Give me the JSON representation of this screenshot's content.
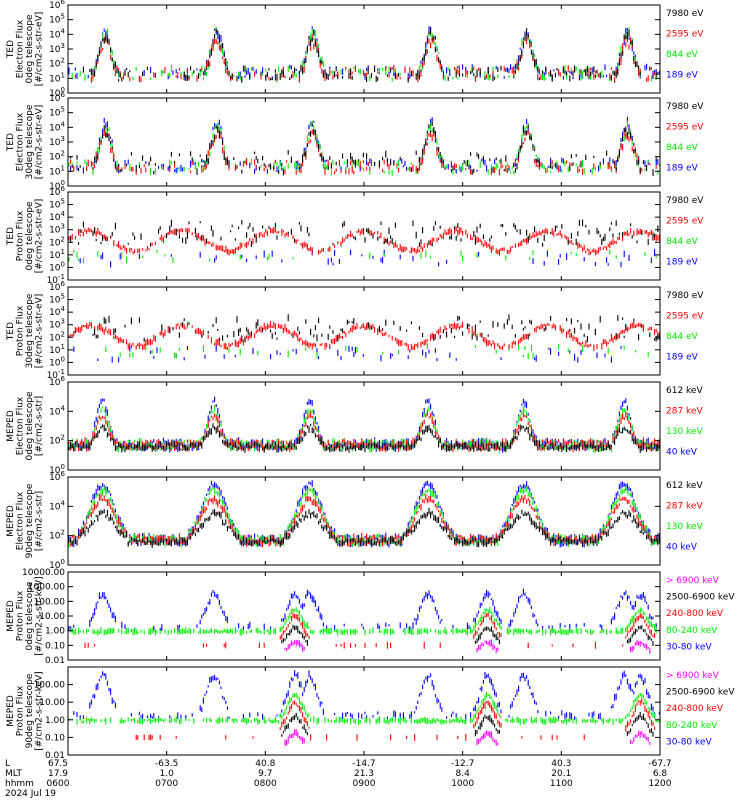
{
  "chart_data": {
    "type": "scatter",
    "date_label": "2024 Jul 19",
    "x_axis_rows": [
      {
        "name": "L",
        "ticks": [
          "67.5",
          "-63.5",
          "40.8",
          "-14.7",
          "-12.7",
          "40.3",
          "-67.7"
        ]
      },
      {
        "name": "MLT",
        "ticks": [
          "17.9",
          "1.0",
          "9.7",
          "21.3",
          "8.4",
          "20.1",
          "6.8"
        ]
      },
      {
        "name": "hhmm",
        "ticks": [
          "0600",
          "0700",
          "0800",
          "0900",
          "1000",
          "1100",
          "1200"
        ]
      }
    ],
    "x_ticks_hours": [
      6,
      7,
      8,
      9,
      10,
      11,
      12
    ],
    "x_range_hours": [
      6,
      12
    ],
    "series_colors": [
      "#0000ff",
      "#00ee00",
      "#ff0000",
      "#000000",
      "#ff00ff"
    ],
    "panels": [
      {
        "ylabel_lines": [
          "TED",
          "Electron Flux",
          "0deg telescope",
          "[#/cm2-s-str-eV]"
        ],
        "yscale": "log",
        "ylim": [
          1,
          1000000
        ],
        "yticks": [
          "10^0",
          "10^1",
          "10^2",
          "10^3",
          "10^4",
          "10^5",
          "10^6"
        ],
        "legend": [
          {
            "label": "7980 eV",
            "color": "#000000"
          },
          {
            "label": "2595 eV",
            "color": "#ff0000"
          },
          {
            "label": "844 eV",
            "color": "#00ee00"
          },
          {
            "label": "189 eV",
            "color": "#0000ff"
          }
        ],
        "kind": "ted_e0"
      },
      {
        "ylabel_lines": [
          "TED",
          "Electron Flux",
          "30deg telescope",
          "[#/cm2-s-str-eV]"
        ],
        "yscale": "log",
        "ylim": [
          1,
          1000000
        ],
        "yticks": [
          "10^0",
          "10^1",
          "10^2",
          "10^3",
          "10^4",
          "10^5",
          "10^6"
        ],
        "legend": [
          {
            "label": "7980 eV",
            "color": "#000000"
          },
          {
            "label": "2595 eV",
            "color": "#ff0000"
          },
          {
            "label": "844 eV",
            "color": "#00ee00"
          },
          {
            "label": "189 eV",
            "color": "#0000ff"
          }
        ],
        "kind": "ted_e30"
      },
      {
        "ylabel_lines": [
          "TED",
          "Proton Flux",
          "0deg telescope",
          "[#/cm2-s-str-eV]"
        ],
        "yscale": "log",
        "ylim": [
          0.1,
          1000000
        ],
        "yticks": [
          "10^-1",
          "10^0",
          "10^1",
          "10^2",
          "10^3",
          "10^4",
          "10^5",
          "10^6"
        ],
        "legend": [
          {
            "label": "7980 eV",
            "color": "#000000"
          },
          {
            "label": "2595 eV",
            "color": "#ff0000"
          },
          {
            "label": "844 eV",
            "color": "#00ee00"
          },
          {
            "label": "189 eV",
            "color": "#0000ff"
          }
        ],
        "kind": "ted_p0"
      },
      {
        "ylabel_lines": [
          "TED",
          "Proton Flux",
          "30deg telescope",
          "[#/cm2-s-str-eV]"
        ],
        "yscale": "log",
        "ylim": [
          0.1,
          1000000
        ],
        "yticks": [
          "10^-1",
          "10^0",
          "10^1",
          "10^2",
          "10^3",
          "10^4",
          "10^5",
          "10^6"
        ],
        "legend": [
          {
            "label": "7980 eV",
            "color": "#000000"
          },
          {
            "label": "2595 eV",
            "color": "#ff0000"
          },
          {
            "label": "844 eV",
            "color": "#00ee00"
          },
          {
            "label": "189 eV",
            "color": "#0000ff"
          }
        ],
        "kind": "ted_p30"
      },
      {
        "ylabel_lines": [
          "MEPED",
          "Electron Flux",
          "0deg telescope",
          "[#/cm2-s-str]"
        ],
        "yscale": "log",
        "ylim": [
          1,
          1000000
        ],
        "yticks": [
          "10^0",
          "10^2",
          "10^4",
          "10^6"
        ],
        "legend": [
          {
            "label": "612 keV",
            "color": "#000000"
          },
          {
            "label": "287 keV",
            "color": "#ff0000"
          },
          {
            "label": "130 keV",
            "color": "#00ee00"
          },
          {
            "label": "40 keV",
            "color": "#0000ff"
          }
        ],
        "kind": "mep_e0"
      },
      {
        "ylabel_lines": [
          "MEPED",
          "Electron Flux",
          "90deg telescope",
          "[#/cm2-s-str]"
        ],
        "yscale": "log",
        "ylim": [
          1,
          1000000
        ],
        "yticks": [
          "10^0",
          "10^2",
          "10^4",
          "10^6"
        ],
        "legend": [
          {
            "label": "612 keV",
            "color": "#000000"
          },
          {
            "label": "287 keV",
            "color": "#ff0000"
          },
          {
            "label": "130 keV",
            "color": "#00ee00"
          },
          {
            "label": "40 keV",
            "color": "#0000ff"
          }
        ],
        "kind": "mep_e90"
      },
      {
        "ylabel_lines": [
          "MEPED",
          "Proton Flux",
          "0deg telescope",
          "[#/cm2-s-str-keV]"
        ],
        "yscale": "log",
        "ylim": [
          0.01,
          10000
        ],
        "yticks": [
          "0.01",
          "0.10",
          "1.00",
          "10.00",
          "100.00",
          "1000.00",
          "10000.00"
        ],
        "legend": [
          {
            "label": "> 6900 keV",
            "color": "#ff00ff"
          },
          {
            "label": "2500-6900 keV",
            "color": "#000000"
          },
          {
            "label": "240-800 keV",
            "color": "#ff0000"
          },
          {
            "label": "80-240 keV",
            "color": "#00ee00"
          },
          {
            "label": "30-80 keV",
            "color": "#0000ff"
          }
        ],
        "kind": "mep_p0"
      },
      {
        "ylabel_lines": [
          "MEPED",
          "Proton Flux",
          "90deg telescope",
          "[#/cm2-s-str-keV]"
        ],
        "yscale": "log",
        "ylim": [
          0.01,
          1000
        ],
        "yticks": [
          "0.01",
          "0.10",
          "1.00",
          "10.00",
          "100.00"
        ],
        "legend": [
          {
            "label": "> 6900 keV",
            "color": "#ff00ff"
          },
          {
            "label": "2500-6900 keV",
            "color": "#000000"
          },
          {
            "label": "240-800 keV",
            "color": "#ff0000"
          },
          {
            "label": "80-240 keV",
            "color": "#00ee00"
          },
          {
            "label": "30-80 keV",
            "color": "#0000ff"
          }
        ],
        "kind": "mep_p90"
      }
    ]
  }
}
